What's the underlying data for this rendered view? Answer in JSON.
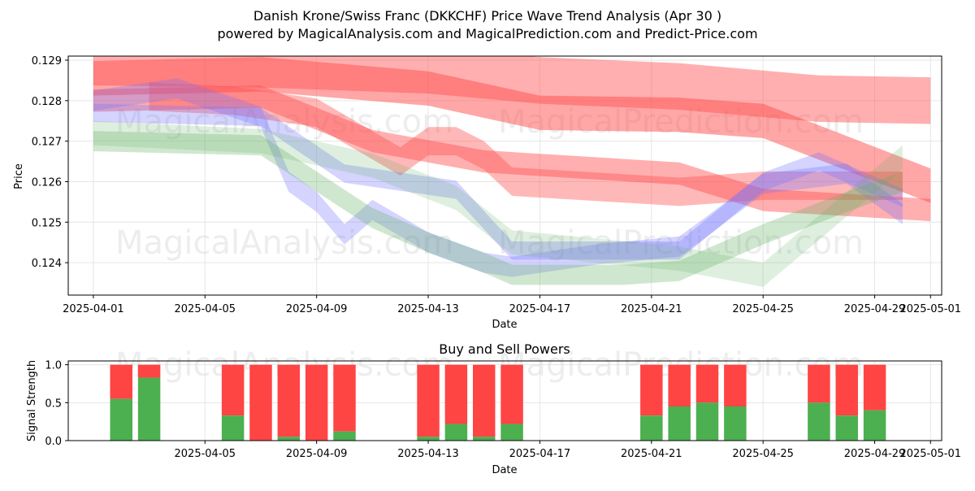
{
  "title_line1": "Danish Krone/Swiss Franc (DKKCHF) Price Wave Trend Analysis (Apr 30 )",
  "title_line2": "powered by MagicalAnalysis.com and MagicalPrediction.com and Predict-Price.com",
  "watermarks": [
    "MagicalAnalysis.com",
    "MagicalPrediction.com"
  ],
  "colors": {
    "red": "#ff4d4d",
    "blue": "#6f6fff",
    "green": "#5fae5f",
    "buy": "#4caf50",
    "sell": "#ff4444"
  },
  "chart_data": [
    {
      "type": "area",
      "title": "",
      "xlabel": "Date",
      "ylabel": "Price",
      "x_ticks": [
        "2025-04-01",
        "2025-04-05",
        "2025-04-09",
        "2025-04-13",
        "2025-04-17",
        "2025-04-21",
        "2025-04-25",
        "2025-04-29",
        "2025-05-01"
      ],
      "y_ticks": [
        "0.124",
        "0.125",
        "0.126",
        "0.127",
        "0.128",
        "0.129"
      ],
      "xlim": [
        "2025-03-31",
        "2025-05-01"
      ],
      "ylim": [
        0.1232,
        0.1291
      ],
      "grid": true,
      "series": [
        {
          "color": "red",
          "opacity": 0.45,
          "width": 0.00115,
          "x": [
            "2025-04-01",
            "2025-04-07",
            "2025-04-13",
            "2025-04-17",
            "2025-04-22",
            "2025-04-27",
            "2025-05-01"
          ],
          "y": [
            0.12895,
            0.1289,
            0.12875,
            0.1285,
            0.12835,
            0.12805,
            0.128
          ]
        },
        {
          "color": "red",
          "opacity": 0.5,
          "width": 0.00085,
          "x": [
            "2025-04-01",
            "2025-04-07",
            "2025-04-13",
            "2025-04-17",
            "2025-04-22",
            "2025-04-25",
            "2025-05-01"
          ],
          "y": [
            0.12855,
            0.12865,
            0.1283,
            0.1277,
            0.12765,
            0.1275,
            0.1259
          ]
        },
        {
          "color": "red",
          "opacity": 0.45,
          "width": 0.00055,
          "x": [
            "2025-04-01",
            "2025-04-07",
            "2025-04-11",
            "2025-04-15",
            "2025-04-22",
            "2025-04-25",
            "2025-05-01"
          ],
          "y": [
            0.128,
            0.1281,
            0.127,
            0.1265,
            0.1262,
            0.12555,
            0.1253
          ]
        },
        {
          "color": "red",
          "opacity": 0.4,
          "width": 0.0007,
          "x": [
            "2025-04-03",
            "2025-04-06",
            "2025-04-09",
            "2025-04-12",
            "2025-04-13",
            "2025-04-14",
            "2025-04-15",
            "2025-04-16",
            "2025-04-22",
            "2025-04-25",
            "2025-04-29",
            "2025-04-30"
          ],
          "y": [
            0.1281,
            0.128,
            0.1277,
            0.1265,
            0.127,
            0.127,
            0.12665,
            0.126,
            0.12575,
            0.1259,
            0.1259,
            0.1259
          ]
        },
        {
          "color": "blue",
          "opacity": 0.3,
          "width": 0.0005,
          "x": [
            "2025-04-01",
            "2025-04-04",
            "2025-04-07",
            "2025-04-08",
            "2025-04-09",
            "2025-04-10",
            "2025-04-11",
            "2025-04-13",
            "2025-04-15",
            "2025-04-16",
            "2025-04-19",
            "2025-04-22",
            "2025-04-23",
            "2025-04-25",
            "2025-04-28",
            "2025-04-30"
          ],
          "y": [
            0.128,
            0.1283,
            0.1276,
            0.126,
            0.1255,
            0.1247,
            0.1253,
            0.1245,
            0.124,
            0.1239,
            0.1242,
            0.1244,
            0.1249,
            0.12595,
            0.1262,
            0.1252
          ]
        },
        {
          "color": "blue",
          "opacity": 0.3,
          "width": 0.00045,
          "x": [
            "2025-04-01",
            "2025-04-07",
            "2025-04-10",
            "2025-04-14",
            "2025-04-16",
            "2025-04-19",
            "2025-04-22",
            "2025-04-25",
            "2025-04-27",
            "2025-04-30"
          ],
          "y": [
            0.1277,
            0.1276,
            0.1262,
            0.1258,
            0.1243,
            0.1243,
            0.1243,
            0.126,
            0.1265,
            0.1256
          ]
        },
        {
          "color": "green",
          "opacity": 0.3,
          "width": 0.0005,
          "x": [
            "2025-04-01",
            "2025-04-07",
            "2025-04-09",
            "2025-04-11",
            "2025-04-13",
            "2025-04-15",
            "2025-04-16",
            "2025-04-20",
            "2025-04-22",
            "2025-04-25",
            "2025-04-28",
            "2025-04-30"
          ],
          "y": [
            0.127,
            0.1269,
            0.126,
            0.1251,
            0.1245,
            0.124,
            0.1237,
            0.1237,
            0.1238,
            0.1247,
            0.1255,
            0.126
          ]
        },
        {
          "color": "green",
          "opacity": 0.2,
          "width": 0.0006,
          "x": [
            "2025-04-01",
            "2025-04-07",
            "2025-04-11",
            "2025-04-14",
            "2025-04-16",
            "2025-04-22",
            "2025-04-25",
            "2025-04-30"
          ],
          "y": [
            0.1272,
            0.127,
            0.1264,
            0.1256,
            0.1245,
            0.1241,
            0.1237,
            0.1266
          ]
        }
      ]
    },
    {
      "type": "bar",
      "title": "Buy and Sell Powers",
      "xlabel": "Date",
      "ylabel": "Signal Strength",
      "x_ticks": [
        "2025-04-05",
        "2025-04-09",
        "2025-04-13",
        "2025-04-17",
        "2025-04-21",
        "2025-04-25",
        "2025-04-29",
        "2025-05-01"
      ],
      "y_ticks": [
        "0.0",
        "0.5",
        "1.0"
      ],
      "xlim": [
        "2025-03-31",
        "2025-05-01"
      ],
      "ylim": [
        0,
        1.05
      ],
      "grid": true,
      "series": [
        {
          "name": "Buy",
          "color": "buy"
        },
        {
          "name": "Sell",
          "color": "sell"
        }
      ],
      "bars": [
        {
          "date": "2025-04-02",
          "buy": 0.55
        },
        {
          "date": "2025-04-03",
          "buy": 0.83
        },
        {
          "date": "2025-04-06",
          "buy": 0.33
        },
        {
          "date": "2025-04-07",
          "buy": 0.0
        },
        {
          "date": "2025-04-08",
          "buy": 0.05
        },
        {
          "date": "2025-04-09",
          "buy": 0.0
        },
        {
          "date": "2025-04-10",
          "buy": 0.12
        },
        {
          "date": "2025-04-13",
          "buy": 0.05
        },
        {
          "date": "2025-04-14",
          "buy": 0.22
        },
        {
          "date": "2025-04-15",
          "buy": 0.05
        },
        {
          "date": "2025-04-16",
          "buy": 0.22
        },
        {
          "date": "2025-04-21",
          "buy": 0.33
        },
        {
          "date": "2025-04-22",
          "buy": 0.45
        },
        {
          "date": "2025-04-23",
          "buy": 0.5
        },
        {
          "date": "2025-04-24",
          "buy": 0.45
        },
        {
          "date": "2025-04-27",
          "buy": 0.5
        },
        {
          "date": "2025-04-28",
          "buy": 0.33
        },
        {
          "date": "2025-04-29",
          "buy": 0.4
        }
      ]
    }
  ]
}
